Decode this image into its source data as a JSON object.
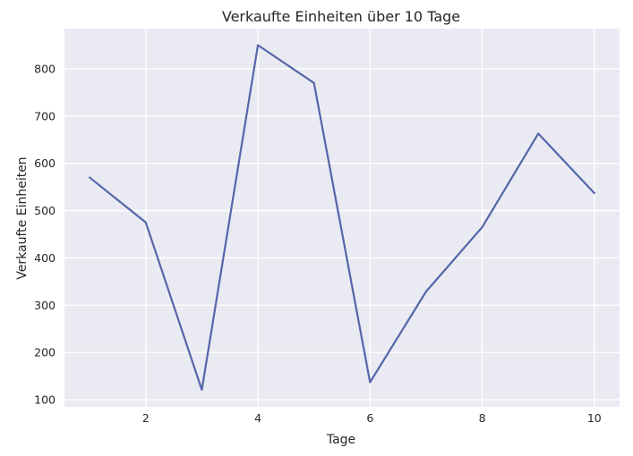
{
  "chart_data": {
    "type": "line",
    "title": "Verkaufte Einheiten über 10 Tage",
    "xlabel": "Tage",
    "ylabel": "Verkaufte Einheiten",
    "x": [
      1,
      2,
      3,
      4,
      5,
      6,
      7,
      8,
      9,
      10
    ],
    "series": [
      {
        "values": [
          570,
          475,
          121,
          850,
          770,
          137,
          329,
          465,
          663,
          537
        ]
      }
    ],
    "xlim": [
      0.55,
      10.45
    ],
    "ylim": [
      85,
      885
    ],
    "xticks": [
      2,
      4,
      6,
      8,
      10
    ],
    "yticks": [
      100,
      200,
      300,
      400,
      500,
      600,
      700,
      800
    ],
    "grid": true,
    "colors": {
      "line": "#5566aa",
      "background": "#eaeaf2",
      "grid": "#ffffff"
    }
  }
}
